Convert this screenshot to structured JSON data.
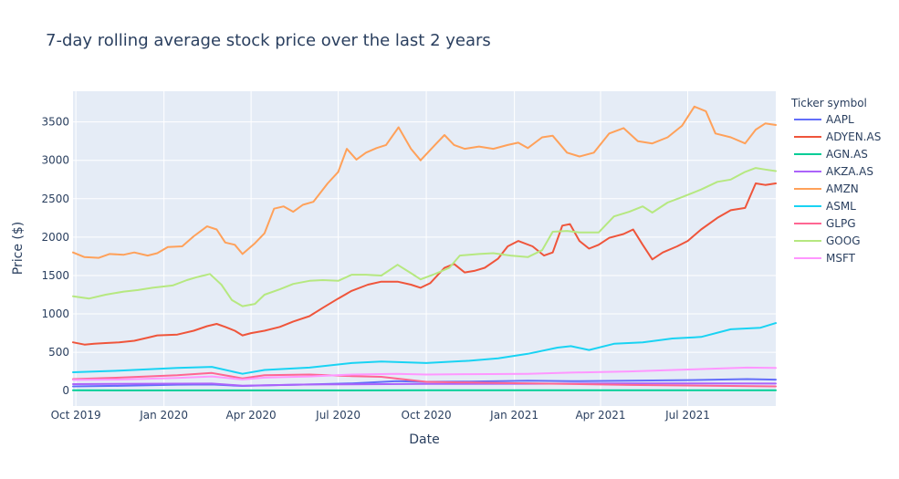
{
  "chart_data": {
    "type": "line",
    "title": "7-day rolling average stock price over the last 2 years",
    "xlabel": "Date",
    "ylabel": "Price ($)",
    "legend_title": "Ticker symbol",
    "legend_position": "right",
    "grid": true,
    "xlim": [
      "2019-09-28",
      "2021-10-01"
    ],
    "ylim": [
      -200,
      3900
    ],
    "x_ticks": [
      {
        "date": "2019-10-01",
        "label": "Oct 2019"
      },
      {
        "date": "2020-01-01",
        "label": "Jan 2020"
      },
      {
        "date": "2020-04-01",
        "label": "Apr 2020"
      },
      {
        "date": "2020-07-01",
        "label": "Jul 2020"
      },
      {
        "date": "2020-10-01",
        "label": "Oct 2020"
      },
      {
        "date": "2021-01-01",
        "label": "Jan 2021"
      },
      {
        "date": "2021-04-01",
        "label": "Apr 2021"
      },
      {
        "date": "2021-07-01",
        "label": "Jul 2021"
      }
    ],
    "y_ticks": [
      {
        "value": 0,
        "label": "0"
      },
      {
        "value": 500,
        "label": "500"
      },
      {
        "value": 1000,
        "label": "1000"
      },
      {
        "value": 1500,
        "label": "1500"
      },
      {
        "value": 2000,
        "label": "2000"
      },
      {
        "value": 2500,
        "label": "2500"
      },
      {
        "value": 3000,
        "label": "3000"
      },
      {
        "value": 3500,
        "label": "3500"
      }
    ],
    "series": [
      {
        "name": "AAPL",
        "color": "#636efa",
        "points": [
          [
            "2019-09-28",
            55
          ],
          [
            "2019-11-15",
            63
          ],
          [
            "2020-01-15",
            78
          ],
          [
            "2020-02-20",
            80
          ],
          [
            "2020-03-23",
            61
          ],
          [
            "2020-04-15",
            68
          ],
          [
            "2020-06-01",
            80
          ],
          [
            "2020-07-15",
            95
          ],
          [
            "2020-08-31",
            125
          ],
          [
            "2020-10-01",
            115
          ],
          [
            "2020-11-15",
            118
          ],
          [
            "2021-01-15",
            130
          ],
          [
            "2021-03-01",
            123
          ],
          [
            "2021-05-01",
            130
          ],
          [
            "2021-07-01",
            138
          ],
          [
            "2021-09-01",
            150
          ],
          [
            "2021-10-01",
            143
          ]
        ]
      },
      {
        "name": "ADYEN.AS",
        "color": "#ef553b",
        "points": [
          [
            "2019-09-28",
            630
          ],
          [
            "2019-10-10",
            600
          ],
          [
            "2019-10-20",
            610
          ],
          [
            "2019-11-01",
            620
          ],
          [
            "2019-11-15",
            630
          ],
          [
            "2019-12-01",
            650
          ],
          [
            "2019-12-15",
            690
          ],
          [
            "2019-12-25",
            720
          ],
          [
            "2020-01-15",
            730
          ],
          [
            "2020-02-01",
            780
          ],
          [
            "2020-02-15",
            840
          ],
          [
            "2020-02-25",
            870
          ],
          [
            "2020-03-05",
            830
          ],
          [
            "2020-03-15",
            780
          ],
          [
            "2020-03-23",
            720
          ],
          [
            "2020-04-01",
            750
          ],
          [
            "2020-04-15",
            780
          ],
          [
            "2020-05-01",
            830
          ],
          [
            "2020-05-15",
            900
          ],
          [
            "2020-06-01",
            970
          ],
          [
            "2020-06-15",
            1080
          ],
          [
            "2020-07-01",
            1200
          ],
          [
            "2020-07-15",
            1300
          ],
          [
            "2020-08-01",
            1380
          ],
          [
            "2020-08-15",
            1420
          ],
          [
            "2020-09-01",
            1420
          ],
          [
            "2020-09-15",
            1380
          ],
          [
            "2020-09-25",
            1340
          ],
          [
            "2020-10-05",
            1400
          ],
          [
            "2020-10-20",
            1600
          ],
          [
            "2020-10-30",
            1650
          ],
          [
            "2020-11-10",
            1540
          ],
          [
            "2020-11-20",
            1560
          ],
          [
            "2020-12-01",
            1600
          ],
          [
            "2020-12-15",
            1720
          ],
          [
            "2020-12-25",
            1880
          ],
          [
            "2021-01-05",
            1950
          ],
          [
            "2021-01-20",
            1880
          ],
          [
            "2021-02-01",
            1760
          ],
          [
            "2021-02-10",
            1800
          ],
          [
            "2021-02-20",
            2150
          ],
          [
            "2021-02-28",
            2170
          ],
          [
            "2021-03-10",
            1950
          ],
          [
            "2021-03-20",
            1850
          ],
          [
            "2021-03-30",
            1900
          ],
          [
            "2021-04-10",
            1990
          ],
          [
            "2021-04-25",
            2040
          ],
          [
            "2021-05-05",
            2100
          ],
          [
            "2021-05-15",
            1900
          ],
          [
            "2021-05-25",
            1710
          ],
          [
            "2021-06-05",
            1800
          ],
          [
            "2021-06-20",
            1880
          ],
          [
            "2021-07-01",
            1950
          ],
          [
            "2021-07-15",
            2100
          ],
          [
            "2021-08-01",
            2250
          ],
          [
            "2021-08-15",
            2350
          ],
          [
            "2021-08-30",
            2380
          ],
          [
            "2021-09-10",
            2700
          ],
          [
            "2021-09-20",
            2680
          ],
          [
            "2021-10-01",
            2700
          ]
        ]
      },
      {
        "name": "AGN.AS",
        "color": "#00cc96",
        "points": [
          [
            "2019-09-28",
            5
          ],
          [
            "2020-03-23",
            3
          ],
          [
            "2020-10-01",
            4
          ],
          [
            "2021-04-01",
            5
          ],
          [
            "2021-10-01",
            6
          ]
        ]
      },
      {
        "name": "AKZA.AS",
        "color": "#ab63fa",
        "points": [
          [
            "2019-09-28",
            85
          ],
          [
            "2019-12-15",
            90
          ],
          [
            "2020-02-20",
            92
          ],
          [
            "2020-03-23",
            65
          ],
          [
            "2020-06-01",
            80
          ],
          [
            "2020-10-01",
            88
          ],
          [
            "2021-01-15",
            90
          ],
          [
            "2021-05-01",
            95
          ],
          [
            "2021-10-01",
            92
          ]
        ]
      },
      {
        "name": "AMZN",
        "color": "#ffa15a",
        "points": [
          [
            "2019-09-28",
            1800
          ],
          [
            "2019-10-10",
            1740
          ],
          [
            "2019-10-25",
            1730
          ],
          [
            "2019-11-05",
            1780
          ],
          [
            "2019-11-20",
            1770
          ],
          [
            "2019-12-01",
            1800
          ],
          [
            "2019-12-15",
            1760
          ],
          [
            "2019-12-25",
            1790
          ],
          [
            "2020-01-05",
            1870
          ],
          [
            "2020-01-20",
            1880
          ],
          [
            "2020-02-01",
            2010
          ],
          [
            "2020-02-15",
            2140
          ],
          [
            "2020-02-25",
            2100
          ],
          [
            "2020-03-05",
            1930
          ],
          [
            "2020-03-15",
            1900
          ],
          [
            "2020-03-23",
            1780
          ],
          [
            "2020-04-05",
            1920
          ],
          [
            "2020-04-15",
            2050
          ],
          [
            "2020-04-25",
            2370
          ],
          [
            "2020-05-05",
            2400
          ],
          [
            "2020-05-15",
            2330
          ],
          [
            "2020-05-25",
            2420
          ],
          [
            "2020-06-05",
            2460
          ],
          [
            "2020-06-20",
            2700
          ],
          [
            "2020-07-01",
            2850
          ],
          [
            "2020-07-10",
            3150
          ],
          [
            "2020-07-20",
            3010
          ],
          [
            "2020-07-30",
            3100
          ],
          [
            "2020-08-10",
            3160
          ],
          [
            "2020-08-20",
            3200
          ],
          [
            "2020-09-02",
            3430
          ],
          [
            "2020-09-15",
            3150
          ],
          [
            "2020-09-25",
            3000
          ],
          [
            "2020-10-10",
            3200
          ],
          [
            "2020-10-20",
            3330
          ],
          [
            "2020-10-30",
            3200
          ],
          [
            "2020-11-10",
            3150
          ],
          [
            "2020-11-25",
            3180
          ],
          [
            "2020-12-10",
            3150
          ],
          [
            "2020-12-25",
            3200
          ],
          [
            "2021-01-05",
            3230
          ],
          [
            "2021-01-15",
            3160
          ],
          [
            "2021-01-30",
            3300
          ],
          [
            "2021-02-10",
            3320
          ],
          [
            "2021-02-25",
            3100
          ],
          [
            "2021-03-10",
            3050
          ],
          [
            "2021-03-25",
            3100
          ],
          [
            "2021-04-10",
            3350
          ],
          [
            "2021-04-25",
            3420
          ],
          [
            "2021-05-10",
            3250
          ],
          [
            "2021-05-25",
            3220
          ],
          [
            "2021-06-10",
            3300
          ],
          [
            "2021-06-25",
            3450
          ],
          [
            "2021-07-08",
            3700
          ],
          [
            "2021-07-20",
            3640
          ],
          [
            "2021-07-30",
            3350
          ],
          [
            "2021-08-15",
            3300
          ],
          [
            "2021-08-30",
            3220
          ],
          [
            "2021-09-10",
            3400
          ],
          [
            "2021-09-20",
            3480
          ],
          [
            "2021-10-01",
            3460
          ]
        ]
      },
      {
        "name": "ASML",
        "color": "#19d3f3",
        "points": [
          [
            "2019-09-28",
            240
          ],
          [
            "2019-11-15",
            260
          ],
          [
            "2020-01-15",
            295
          ],
          [
            "2020-02-20",
            310
          ],
          [
            "2020-03-23",
            220
          ],
          [
            "2020-04-15",
            270
          ],
          [
            "2020-06-01",
            300
          ],
          [
            "2020-07-15",
            360
          ],
          [
            "2020-08-15",
            380
          ],
          [
            "2020-10-01",
            360
          ],
          [
            "2020-11-15",
            390
          ],
          [
            "2020-12-15",
            420
          ],
          [
            "2021-01-15",
            480
          ],
          [
            "2021-02-15",
            560
          ],
          [
            "2021-03-01",
            580
          ],
          [
            "2021-03-20",
            530
          ],
          [
            "2021-04-15",
            610
          ],
          [
            "2021-05-15",
            630
          ],
          [
            "2021-06-15",
            680
          ],
          [
            "2021-07-15",
            700
          ],
          [
            "2021-08-15",
            800
          ],
          [
            "2021-09-15",
            820
          ],
          [
            "2021-10-01",
            880
          ]
        ]
      },
      {
        "name": "GLPG",
        "color": "#ff6692",
        "points": [
          [
            "2019-09-28",
            150
          ],
          [
            "2019-11-15",
            170
          ],
          [
            "2020-01-15",
            200
          ],
          [
            "2020-02-20",
            230
          ],
          [
            "2020-03-23",
            160
          ],
          [
            "2020-04-15",
            200
          ],
          [
            "2020-06-01",
            210
          ],
          [
            "2020-07-15",
            190
          ],
          [
            "2020-08-15",
            180
          ],
          [
            "2020-10-01",
            115
          ],
          [
            "2020-12-15",
            100
          ],
          [
            "2021-02-15",
            90
          ],
          [
            "2021-05-01",
            75
          ],
          [
            "2021-10-01",
            55
          ]
        ]
      },
      {
        "name": "GOOG",
        "color": "#b6e880",
        "points": [
          [
            "2019-09-28",
            1230
          ],
          [
            "2019-10-15",
            1200
          ],
          [
            "2019-11-01",
            1250
          ],
          [
            "2019-11-20",
            1290
          ],
          [
            "2019-12-05",
            1310
          ],
          [
            "2019-12-20",
            1340
          ],
          [
            "2020-01-10",
            1370
          ],
          [
            "2020-01-25",
            1440
          ],
          [
            "2020-02-05",
            1480
          ],
          [
            "2020-02-18",
            1520
          ],
          [
            "2020-03-01",
            1380
          ],
          [
            "2020-03-12",
            1180
          ],
          [
            "2020-03-23",
            1100
          ],
          [
            "2020-04-05",
            1130
          ],
          [
            "2020-04-15",
            1250
          ],
          [
            "2020-05-01",
            1320
          ],
          [
            "2020-05-15",
            1390
          ],
          [
            "2020-06-01",
            1430
          ],
          [
            "2020-06-15",
            1440
          ],
          [
            "2020-07-01",
            1430
          ],
          [
            "2020-07-15",
            1510
          ],
          [
            "2020-07-30",
            1510
          ],
          [
            "2020-08-15",
            1500
          ],
          [
            "2020-09-01",
            1640
          ],
          [
            "2020-09-15",
            1530
          ],
          [
            "2020-09-25",
            1450
          ],
          [
            "2020-10-10",
            1520
          ],
          [
            "2020-10-25",
            1600
          ],
          [
            "2020-11-05",
            1760
          ],
          [
            "2020-11-25",
            1780
          ],
          [
            "2020-12-10",
            1790
          ],
          [
            "2020-12-28",
            1760
          ],
          [
            "2021-01-15",
            1740
          ],
          [
            "2021-01-30",
            1830
          ],
          [
            "2021-02-10",
            2070
          ],
          [
            "2021-02-25",
            2080
          ],
          [
            "2021-03-10",
            2060
          ],
          [
            "2021-03-30",
            2060
          ],
          [
            "2021-04-15",
            2270
          ],
          [
            "2021-05-01",
            2330
          ],
          [
            "2021-05-15",
            2400
          ],
          [
            "2021-05-25",
            2320
          ],
          [
            "2021-06-10",
            2450
          ],
          [
            "2021-06-25",
            2520
          ],
          [
            "2021-07-15",
            2620
          ],
          [
            "2021-08-01",
            2720
          ],
          [
            "2021-08-15",
            2750
          ],
          [
            "2021-08-30",
            2850
          ],
          [
            "2021-09-10",
            2900
          ],
          [
            "2021-09-20",
            2880
          ],
          [
            "2021-10-01",
            2860
          ]
        ]
      },
      {
        "name": "MSFT",
        "color": "#ff97ff",
        "points": [
          [
            "2019-09-28",
            140
          ],
          [
            "2019-11-15",
            145
          ],
          [
            "2020-01-15",
            165
          ],
          [
            "2020-02-20",
            185
          ],
          [
            "2020-03-23",
            145
          ],
          [
            "2020-04-15",
            170
          ],
          [
            "2020-06-01",
            185
          ],
          [
            "2020-07-15",
            210
          ],
          [
            "2020-08-31",
            220
          ],
          [
            "2020-10-01",
            210
          ],
          [
            "2020-11-15",
            215
          ],
          [
            "2021-01-15",
            220
          ],
          [
            "2021-03-01",
            235
          ],
          [
            "2021-05-01",
            250
          ],
          [
            "2021-07-01",
            275
          ],
          [
            "2021-09-01",
            300
          ],
          [
            "2021-10-01",
            295
          ]
        ]
      }
    ]
  }
}
